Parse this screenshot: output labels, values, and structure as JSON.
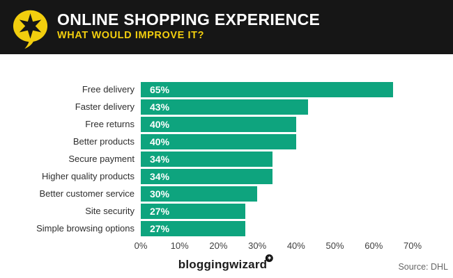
{
  "header": {
    "title": "ONLINE SHOPPING EXPERIENCE",
    "subtitle": "WHAT WOULD IMPROVE IT?",
    "logo_icon": "speech-bubble-star-icon",
    "bg_color": "#161616",
    "accent_color": "#F2CE0E"
  },
  "chart_data": {
    "type": "bar",
    "orientation": "horizontal",
    "title": "ONLINE SHOPPING EXPERIENCE — WHAT WOULD IMPROVE IT?",
    "categories": [
      "Free delivery",
      "Faster delivery",
      "Free returns",
      "Better products",
      "Secure payment",
      "Higher quality products",
      "Better customer service",
      "Site security",
      "Simple browsing options"
    ],
    "values": [
      65,
      43,
      40,
      40,
      34,
      34,
      30,
      27,
      27
    ],
    "value_labels": [
      "65%",
      "43%",
      "40%",
      "40%",
      "34%",
      "34%",
      "30%",
      "27%",
      "27%"
    ],
    "x_ticks": [
      {
        "value": 0,
        "label": "0%"
      },
      {
        "value": 10,
        "label": "10%"
      },
      {
        "value": 20,
        "label": "20%"
      },
      {
        "value": 30,
        "label": "30%"
      },
      {
        "value": 40,
        "label": "40%"
      },
      {
        "value": 50,
        "label": "50%"
      },
      {
        "value": 60,
        "label": "60%"
      },
      {
        "value": 70,
        "label": "70%"
      }
    ],
    "xlim": [
      0,
      70
    ],
    "bar_color": "#0EA47E",
    "grid": false,
    "legend": false
  },
  "footer": {
    "brand": "bloggingwizard",
    "brand_badge_icon": "star-badge-icon",
    "source": "Source: DHL"
  }
}
